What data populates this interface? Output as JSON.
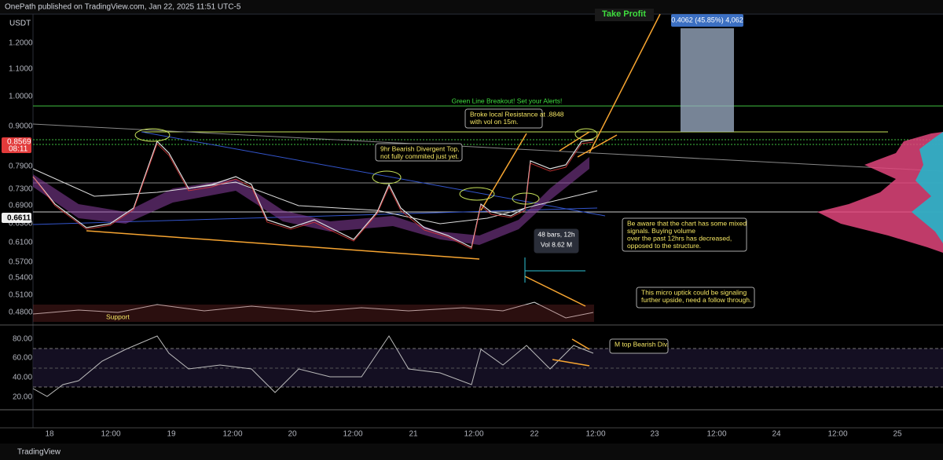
{
  "header": {
    "text": "OnePath published on TradingView.com, Jan 22, 2025 11:51 UTC-5"
  },
  "currency": "USDT",
  "price_axis": {
    "labels": [
      "1.2000",
      "1.1000",
      "1.0000",
      "0.9000",
      "0.7900",
      "0.7300",
      "0.6900",
      "0.6300",
      "0.6100",
      "0.5700",
      "0.5400",
      "0.5100",
      "0.4800"
    ]
  },
  "badges": {
    "last_price": "0.8569",
    "countdown": "08:11",
    "level": "0.6611"
  },
  "rsi_axis": {
    "labels": [
      "80.00",
      "60.00",
      "40.00",
      "20.00"
    ]
  },
  "time_axis": {
    "labels": [
      "18",
      "12:00",
      "19",
      "12:00",
      "20",
      "12:00",
      "21",
      "12:00",
      "22",
      "12:00",
      "23",
      "12:00",
      "24",
      "12:00",
      "25"
    ]
  },
  "take_profit": {
    "label": "Take Profit",
    "measure": "0.4062 (45.85%) 4,062"
  },
  "annotations": [
    {
      "lines": [
        "Green Line Breakout! Set your Alerts!"
      ]
    },
    {
      "lines": [
        "Broke local Resistance at .8848",
        "with vol on 15m."
      ]
    },
    {
      "lines": [
        "9hr Bearish Divergent Top,",
        "not fully commited just yet."
      ]
    },
    {
      "lines": [
        "Be aware that the chart has some mixed",
        "signals. Buying volume",
        "over the past 12hrs has decreased,",
        "opposed to the structure."
      ]
    },
    {
      "lines": [
        "48 bars, 12h",
        "Vol 8.62 M"
      ]
    },
    {
      "lines": [
        "This micro uptick could be signaling",
        "further upside, need a follow through."
      ]
    },
    {
      "lines": [
        "M top Bearish Div."
      ]
    },
    {
      "lines": [
        "Support"
      ]
    }
  ],
  "footer": {
    "brand": "TradingView"
  }
}
